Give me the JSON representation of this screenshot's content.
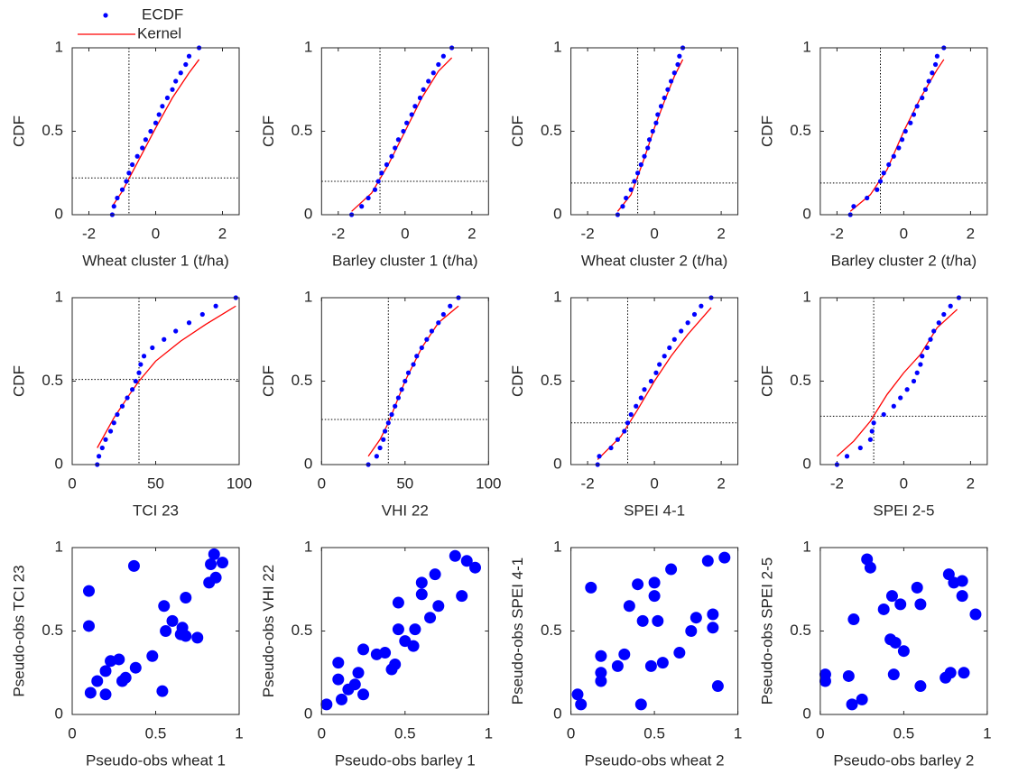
{
  "chart_data": [
    {
      "type": "cdf",
      "xlabel": "Wheat cluster 1 (t/ha)",
      "ylabel": "CDF",
      "xlim": [
        -2.5,
        2.5
      ],
      "xticks": [
        -2,
        0,
        2
      ],
      "ylim": [
        0,
        1
      ],
      "yticks": [
        0,
        0.5,
        1
      ],
      "ref_x": -0.8,
      "ref_y": 0.22,
      "series": [
        {
          "name": "ECDF",
          "color": "#0000ff",
          "x": [
            -1.3,
            -1.25,
            -1.15,
            -1.0,
            -0.88,
            -0.8,
            -0.7,
            -0.55,
            -0.4,
            -0.3,
            -0.15,
            0,
            0.1,
            0.2,
            0.35,
            0.5,
            0.6,
            0.75,
            0.9,
            1.0,
            1.3
          ],
          "values": [
            0,
            0.05,
            0.1,
            0.15,
            0.2,
            0.25,
            0.3,
            0.35,
            0.4,
            0.45,
            0.5,
            0.55,
            0.6,
            0.65,
            0.7,
            0.75,
            0.8,
            0.85,
            0.9,
            0.95,
            1
          ]
        },
        {
          "name": "Kernel",
          "color": "#ff0000",
          "x": [
            -1.3,
            -1,
            -0.5,
            0,
            0.5,
            1,
            1.3
          ],
          "values": [
            0.05,
            0.14,
            0.33,
            0.52,
            0.7,
            0.85,
            0.93
          ]
        }
      ]
    },
    {
      "type": "cdf",
      "xlabel": "Barley cluster 1 (t/ha)",
      "ylabel": "CDF",
      "xlim": [
        -2.5,
        2.5
      ],
      "xticks": [
        -2,
        0,
        2
      ],
      "ylim": [
        0,
        1
      ],
      "yticks": [
        0,
        0.5,
        1
      ],
      "ref_x": -0.75,
      "ref_y": 0.2,
      "series": [
        {
          "color": "#0000ff",
          "x": [
            -1.6,
            -1.3,
            -1.1,
            -0.9,
            -0.8,
            -0.7,
            -0.55,
            -0.4,
            -0.3,
            -0.2,
            -0.05,
            0.05,
            0.2,
            0.3,
            0.45,
            0.55,
            0.7,
            0.85,
            1.0,
            1.15,
            1.4
          ],
          "values": [
            0,
            0.05,
            0.1,
            0.15,
            0.2,
            0.25,
            0.3,
            0.35,
            0.4,
            0.45,
            0.5,
            0.55,
            0.6,
            0.65,
            0.7,
            0.75,
            0.8,
            0.85,
            0.9,
            0.95,
            1
          ]
        },
        {
          "color": "#ff0000",
          "x": [
            -1.6,
            -1,
            -0.5,
            0,
            0.5,
            1,
            1.4
          ],
          "values": [
            0.02,
            0.13,
            0.3,
            0.5,
            0.7,
            0.86,
            0.94
          ]
        }
      ]
    },
    {
      "type": "cdf",
      "xlabel": "Wheat cluster 2 (t/ha)",
      "ylabel": "CDF",
      "xlim": [
        -2.5,
        2.5
      ],
      "xticks": [
        -2,
        0,
        2
      ],
      "ylim": [
        0,
        1
      ],
      "yticks": [
        0,
        0.5,
        1
      ],
      "ref_x": -0.5,
      "ref_y": 0.19,
      "series": [
        {
          "color": "#0000ff",
          "x": [
            -1.1,
            -0.95,
            -0.85,
            -0.7,
            -0.6,
            -0.5,
            -0.4,
            -0.3,
            -0.2,
            -0.15,
            -0.05,
            0.05,
            0.1,
            0.2,
            0.3,
            0.4,
            0.5,
            0.6,
            0.7,
            0.75,
            0.85
          ],
          "values": [
            0,
            0.05,
            0.1,
            0.15,
            0.2,
            0.25,
            0.3,
            0.35,
            0.4,
            0.45,
            0.5,
            0.55,
            0.6,
            0.65,
            0.7,
            0.75,
            0.8,
            0.85,
            0.9,
            0.95,
            1
          ]
        },
        {
          "color": "#ff0000",
          "x": [
            -1.1,
            -0.7,
            -0.3,
            0,
            0.3,
            0.6,
            0.85
          ],
          "values": [
            0.02,
            0.12,
            0.34,
            0.52,
            0.68,
            0.83,
            0.93
          ]
        }
      ]
    },
    {
      "type": "cdf",
      "xlabel": "Barley cluster 2 (t/ha)",
      "ylabel": "CDF",
      "xlim": [
        -2.5,
        2.5
      ],
      "xticks": [
        -2,
        0,
        2
      ],
      "ylim": [
        0,
        1
      ],
      "yticks": [
        0,
        0.5,
        1
      ],
      "ref_x": -0.7,
      "ref_y": 0.19,
      "series": [
        {
          "color": "#0000ff",
          "x": [
            -1.6,
            -1.5,
            -1.1,
            -0.8,
            -0.7,
            -0.6,
            -0.45,
            -0.3,
            -0.15,
            -0.05,
            0.05,
            0.2,
            0.3,
            0.4,
            0.55,
            0.65,
            0.75,
            0.85,
            0.95,
            1.0,
            1.2
          ],
          "values": [
            0,
            0.05,
            0.1,
            0.15,
            0.2,
            0.25,
            0.3,
            0.35,
            0.4,
            0.45,
            0.5,
            0.55,
            0.6,
            0.65,
            0.7,
            0.75,
            0.8,
            0.85,
            0.9,
            0.95,
            1
          ]
        },
        {
          "color": "#ff0000",
          "x": [
            -1.6,
            -1,
            -0.5,
            0,
            0.5,
            1,
            1.2
          ],
          "values": [
            0.02,
            0.12,
            0.27,
            0.5,
            0.7,
            0.87,
            0.93
          ]
        }
      ]
    },
    {
      "type": "cdf",
      "xlabel": "TCI 23",
      "ylabel": "CDF",
      "xlim": [
        0,
        100
      ],
      "xticks": [
        0,
        50,
        100
      ],
      "ylim": [
        0,
        1
      ],
      "yticks": [
        0,
        0.5,
        1
      ],
      "ref_x": 40,
      "ref_y": 0.51,
      "series": [
        {
          "color": "#0000ff",
          "x": [
            15,
            16,
            18,
            20,
            23,
            25,
            27,
            30,
            33,
            36,
            38,
            40,
            41,
            43,
            48,
            55,
            62,
            70,
            78,
            86,
            98
          ],
          "values": [
            0,
            0.05,
            0.1,
            0.15,
            0.2,
            0.25,
            0.3,
            0.35,
            0.4,
            0.45,
            0.5,
            0.55,
            0.6,
            0.65,
            0.7,
            0.75,
            0.8,
            0.85,
            0.9,
            0.95,
            1
          ]
        },
        {
          "color": "#ff0000",
          "x": [
            15,
            25,
            35,
            40,
            50,
            65,
            80,
            98
          ],
          "values": [
            0.1,
            0.28,
            0.43,
            0.5,
            0.62,
            0.74,
            0.84,
            0.95
          ]
        }
      ]
    },
    {
      "type": "cdf",
      "xlabel": "VHI 22",
      "ylabel": "CDF",
      "xlim": [
        0,
        100
      ],
      "xticks": [
        0,
        50,
        100
      ],
      "ylim": [
        0,
        1
      ],
      "yticks": [
        0,
        0.5,
        1
      ],
      "ref_x": 40,
      "ref_y": 0.27,
      "series": [
        {
          "color": "#0000ff",
          "x": [
            28,
            33,
            35,
            37,
            38,
            40,
            42,
            44,
            46,
            48,
            50,
            52,
            55,
            57,
            60,
            63,
            66,
            70,
            73,
            77,
            82
          ],
          "values": [
            0,
            0.05,
            0.1,
            0.15,
            0.2,
            0.25,
            0.3,
            0.35,
            0.4,
            0.45,
            0.5,
            0.55,
            0.6,
            0.65,
            0.7,
            0.75,
            0.8,
            0.85,
            0.9,
            0.95,
            1
          ]
        },
        {
          "color": "#ff0000",
          "x": [
            28,
            35,
            40,
            50,
            60,
            70,
            82
          ],
          "values": [
            0.05,
            0.15,
            0.25,
            0.5,
            0.7,
            0.85,
            0.95
          ]
        }
      ]
    },
    {
      "type": "cdf",
      "xlabel": "SPEI 4-1",
      "ylabel": "CDF",
      "xlim": [
        -2.5,
        2.5
      ],
      "xticks": [
        -2,
        0,
        2
      ],
      "ylim": [
        0,
        1
      ],
      "yticks": [
        0,
        0.5,
        1
      ],
      "ref_x": -0.8,
      "ref_y": 0.25,
      "series": [
        {
          "color": "#0000ff",
          "x": [
            -1.7,
            -1.65,
            -1.3,
            -1.1,
            -0.9,
            -0.8,
            -0.7,
            -0.55,
            -0.4,
            -0.3,
            -0.1,
            0.05,
            0.15,
            0.3,
            0.45,
            0.6,
            0.8,
            1.0,
            1.2,
            1.4,
            1.7
          ],
          "values": [
            0,
            0.05,
            0.1,
            0.15,
            0.2,
            0.25,
            0.3,
            0.35,
            0.4,
            0.45,
            0.5,
            0.55,
            0.6,
            0.65,
            0.7,
            0.75,
            0.8,
            0.85,
            0.9,
            0.95,
            1
          ]
        },
        {
          "color": "#ff0000",
          "x": [
            -1.7,
            -1,
            -0.5,
            0,
            0.5,
            1,
            1.7
          ],
          "values": [
            0.03,
            0.17,
            0.33,
            0.5,
            0.65,
            0.78,
            0.94
          ]
        }
      ]
    },
    {
      "type": "cdf",
      "xlabel": "SPEI 2-5",
      "ylabel": "CDF",
      "xlim": [
        -2.5,
        2.5
      ],
      "xticks": [
        -2,
        0,
        2
      ],
      "ylim": [
        0,
        1
      ],
      "yticks": [
        0,
        0.5,
        1
      ],
      "ref_x": -0.9,
      "ref_y": 0.29,
      "series": [
        {
          "color": "#0000ff",
          "x": [
            -2.0,
            -1.7,
            -1.3,
            -1.0,
            -0.95,
            -0.9,
            -0.6,
            -0.3,
            -0.1,
            0.1,
            0.3,
            0.4,
            0.5,
            0.55,
            0.7,
            0.8,
            0.9,
            1.05,
            1.2,
            1.4,
            1.65
          ],
          "values": [
            0,
            0.05,
            0.1,
            0.15,
            0.2,
            0.25,
            0.3,
            0.35,
            0.4,
            0.45,
            0.5,
            0.55,
            0.6,
            0.65,
            0.7,
            0.75,
            0.8,
            0.85,
            0.9,
            0.95,
            1
          ]
        },
        {
          "color": "#ff0000",
          "x": [
            -2,
            -1.5,
            -1,
            -0.5,
            0,
            0.5,
            1,
            1.6
          ],
          "values": [
            0.05,
            0.14,
            0.26,
            0.42,
            0.55,
            0.66,
            0.82,
            0.93
          ]
        }
      ]
    },
    {
      "type": "scatter",
      "xlabel": "Pseudo-obs wheat 1",
      "ylabel": "Pseudo-obs TCI 23",
      "xlim": [
        0,
        1
      ],
      "xticks": [
        0,
        0.5,
        1
      ],
      "ylim": [
        0,
        1
      ],
      "yticks": [
        0,
        0.5,
        1
      ],
      "color": "#0000ff",
      "x": [
        0.1,
        0.1,
        0.11,
        0.15,
        0.2,
        0.2,
        0.23,
        0.28,
        0.3,
        0.32,
        0.37,
        0.38,
        0.48,
        0.54,
        0.55,
        0.56,
        0.6,
        0.65,
        0.66,
        0.68,
        0.68,
        0.75,
        0.82,
        0.83,
        0.85,
        0.86,
        0.9
      ],
      "values": [
        0.74,
        0.53,
        0.13,
        0.2,
        0.12,
        0.26,
        0.32,
        0.33,
        0.2,
        0.22,
        0.89,
        0.28,
        0.35,
        0.14,
        0.65,
        0.5,
        0.56,
        0.48,
        0.52,
        0.47,
        0.7,
        0.46,
        0.79,
        0.9,
        0.96,
        0.82,
        0.91
      ]
    },
    {
      "type": "scatter",
      "xlabel": "Pseudo-obs barley 1",
      "ylabel": "Pseudo-obs VHI 22",
      "xlim": [
        0,
        1
      ],
      "xticks": [
        0,
        0.5,
        1
      ],
      "ylim": [
        0,
        1
      ],
      "yticks": [
        0,
        0.5,
        1
      ],
      "color": "#0000ff",
      "x": [
        0.03,
        0.1,
        0.1,
        0.12,
        0.16,
        0.2,
        0.22,
        0.25,
        0.25,
        0.33,
        0.38,
        0.42,
        0.44,
        0.46,
        0.46,
        0.5,
        0.55,
        0.56,
        0.6,
        0.6,
        0.65,
        0.68,
        0.7,
        0.8,
        0.84,
        0.87,
        0.92
      ],
      "values": [
        0.06,
        0.31,
        0.21,
        0.09,
        0.15,
        0.18,
        0.25,
        0.39,
        0.12,
        0.36,
        0.37,
        0.27,
        0.3,
        0.67,
        0.51,
        0.44,
        0.41,
        0.51,
        0.79,
        0.72,
        0.58,
        0.84,
        0.65,
        0.95,
        0.71,
        0.92,
        0.88
      ]
    },
    {
      "type": "scatter",
      "xlabel": "Pseudo-obs wheat 2",
      "ylabel": "Pseudo-obs SPEI 4-1",
      "xlim": [
        0,
        1
      ],
      "xticks": [
        0,
        0.5,
        1
      ],
      "ylim": [
        0,
        1
      ],
      "yticks": [
        0,
        0.5,
        1
      ],
      "color": "#0000ff",
      "x": [
        0.04,
        0.06,
        0.12,
        0.18,
        0.18,
        0.18,
        0.28,
        0.32,
        0.35,
        0.4,
        0.42,
        0.43,
        0.48,
        0.5,
        0.5,
        0.52,
        0.55,
        0.6,
        0.65,
        0.72,
        0.75,
        0.82,
        0.85,
        0.85,
        0.88,
        0.92
      ],
      "values": [
        0.12,
        0.06,
        0.76,
        0.35,
        0.25,
        0.2,
        0.29,
        0.36,
        0.65,
        0.78,
        0.06,
        0.56,
        0.29,
        0.79,
        0.71,
        0.56,
        0.31,
        0.87,
        0.37,
        0.5,
        0.58,
        0.92,
        0.52,
        0.6,
        0.17,
        0.94
      ]
    },
    {
      "type": "scatter",
      "xlabel": "Pseudo-obs barley 2",
      "ylabel": "Pseudo-obs SPEI 2-5",
      "xlim": [
        0,
        1
      ],
      "xticks": [
        0,
        0.5,
        1
      ],
      "ylim": [
        0,
        1
      ],
      "yticks": [
        0,
        0.5,
        1
      ],
      "color": "#0000ff",
      "x": [
        0.03,
        0.03,
        0.17,
        0.19,
        0.2,
        0.25,
        0.28,
        0.3,
        0.38,
        0.42,
        0.43,
        0.44,
        0.45,
        0.48,
        0.5,
        0.58,
        0.6,
        0.6,
        0.75,
        0.77,
        0.78,
        0.8,
        0.85,
        0.85,
        0.86,
        0.93
      ],
      "values": [
        0.2,
        0.24,
        0.23,
        0.06,
        0.57,
        0.09,
        0.93,
        0.88,
        0.63,
        0.45,
        0.71,
        0.24,
        0.43,
        0.66,
        0.38,
        0.76,
        0.17,
        0.66,
        0.22,
        0.84,
        0.25,
        0.79,
        0.8,
        0.71,
        0.25,
        0.6
      ]
    }
  ]
}
